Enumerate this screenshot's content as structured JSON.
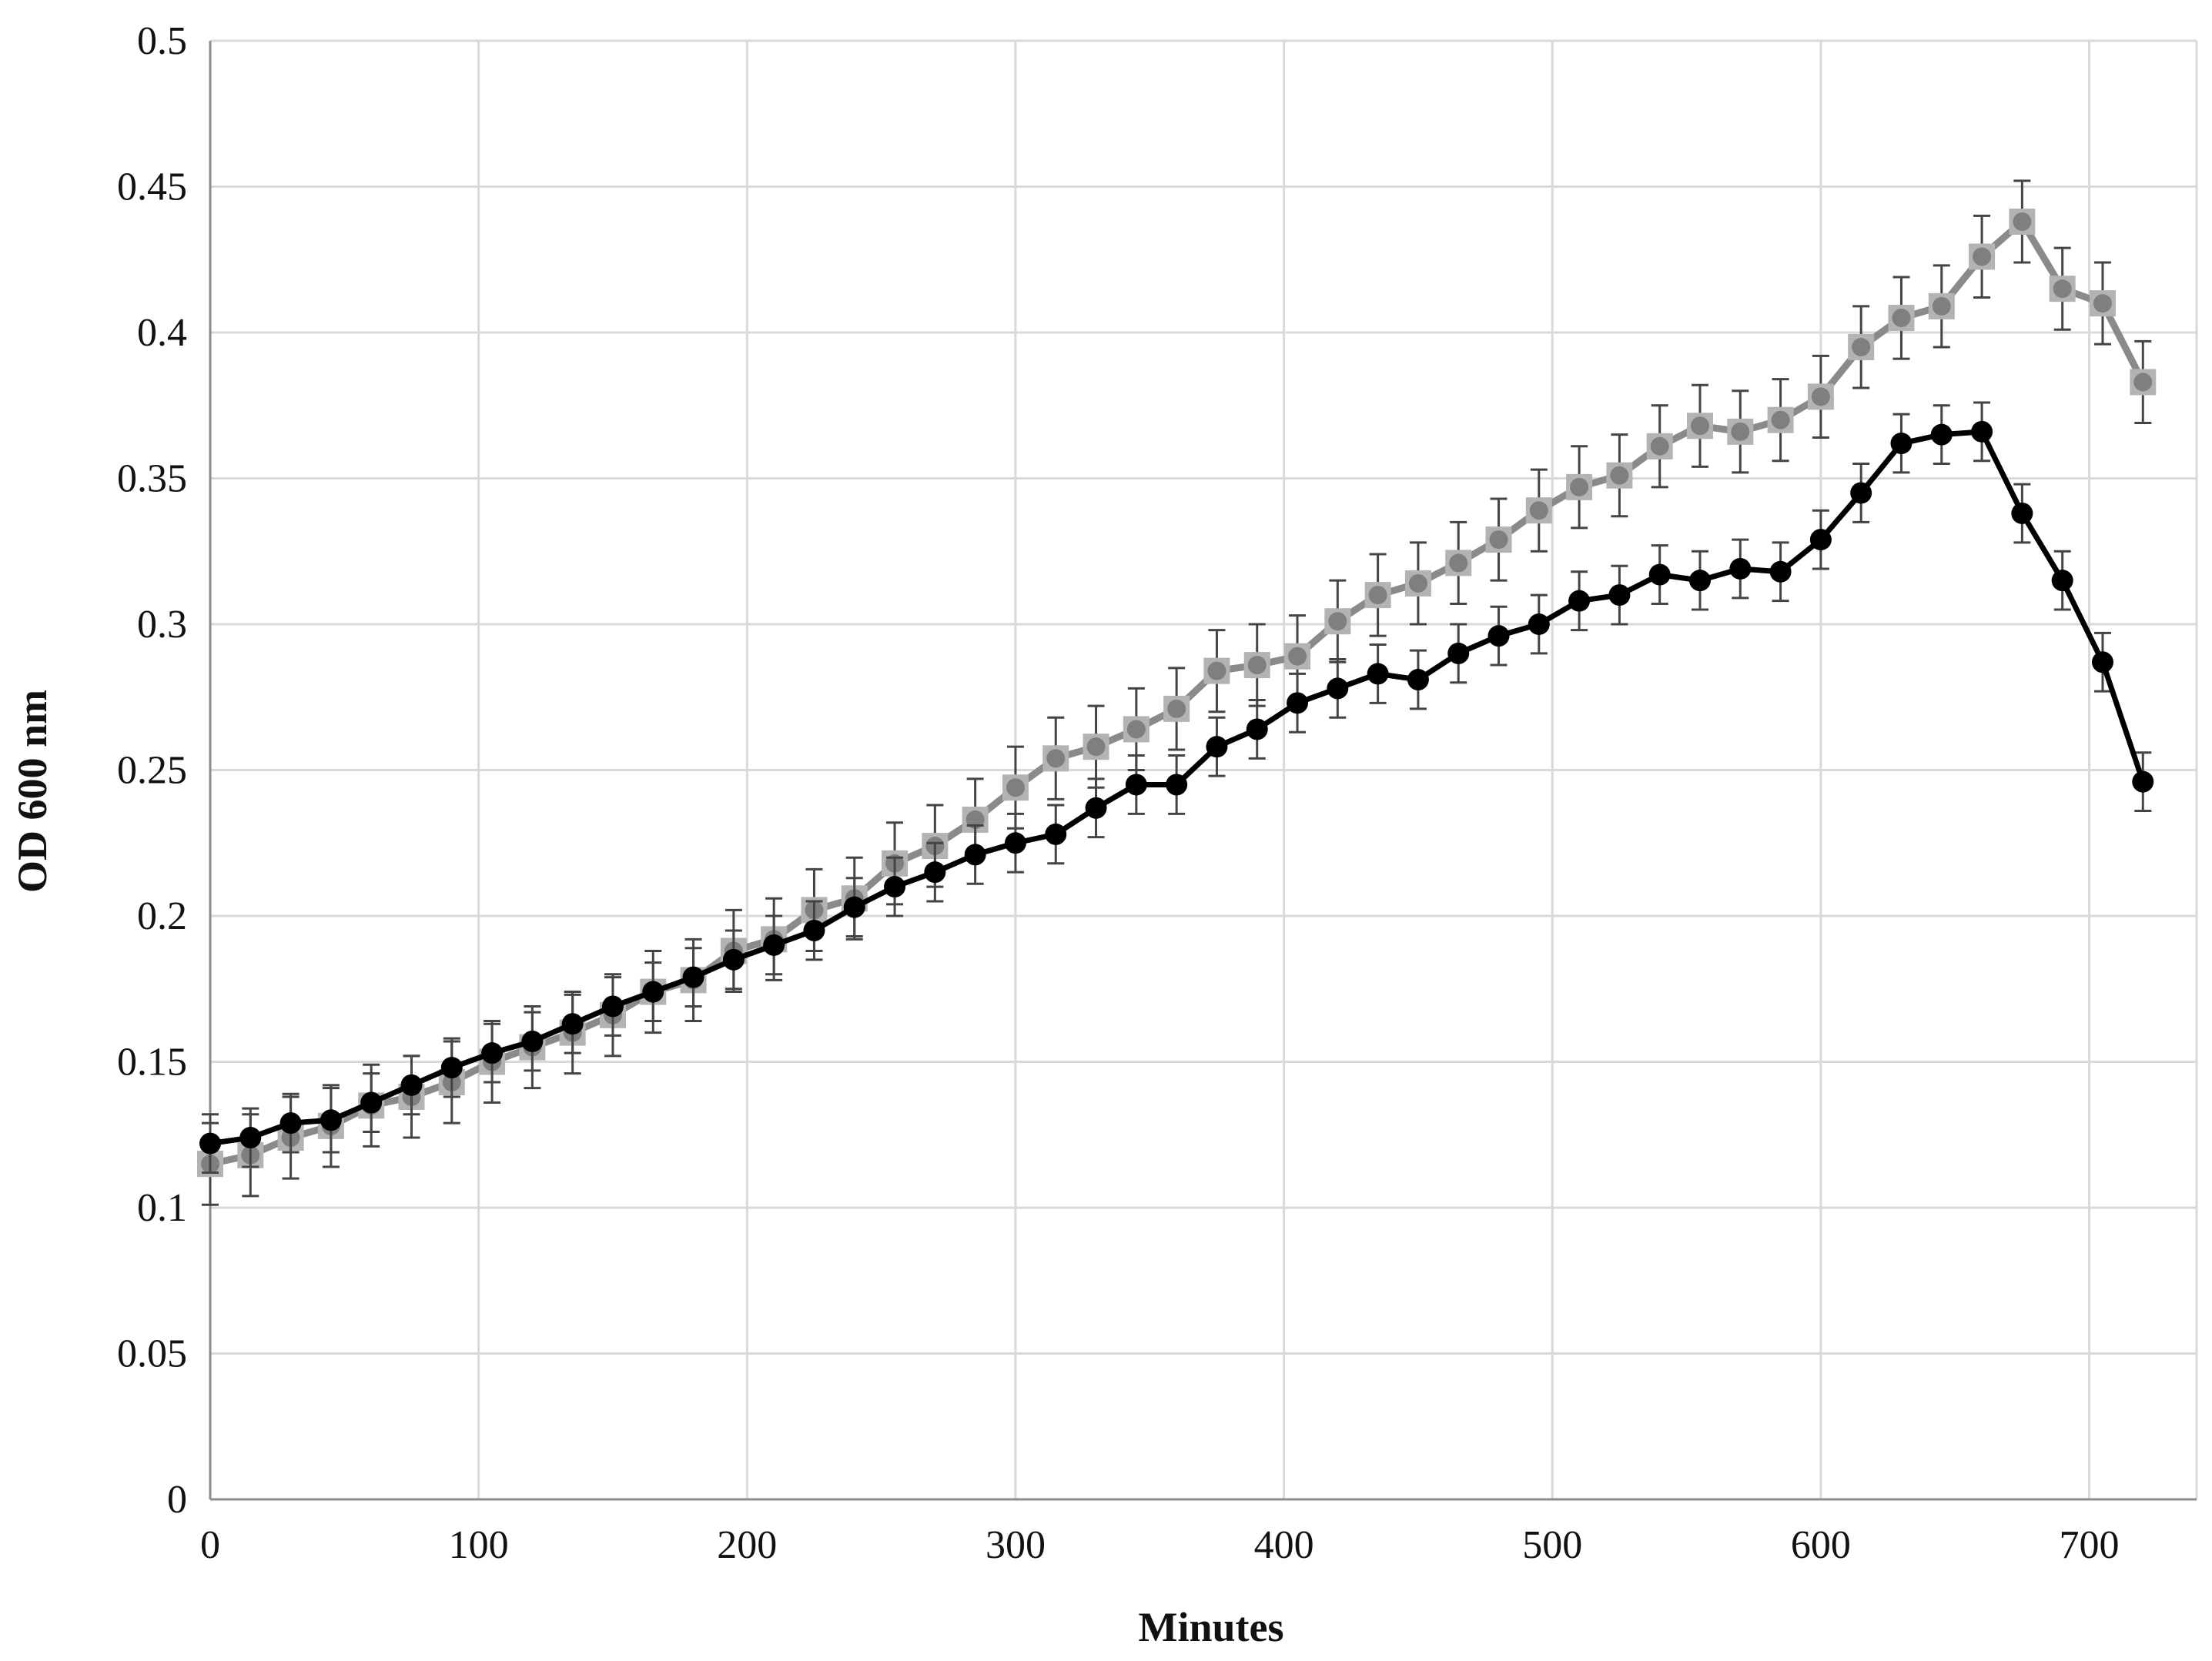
{
  "chart_data": {
    "type": "line",
    "title": "",
    "xlabel": "Minutes",
    "ylabel": "OD 600 nm",
    "xlim": [
      0,
      740
    ],
    "ylim": [
      0,
      0.5
    ],
    "x_ticks": [
      "0",
      "100",
      "200",
      "300",
      "400",
      "500",
      "600",
      "700"
    ],
    "y_ticks": [
      "0",
      "0.05",
      "0.1",
      "0.15",
      "0.2",
      "0.25",
      "0.3",
      "0.35",
      "0.4",
      "0.45",
      "0.5"
    ],
    "grid": true,
    "legend": "none",
    "x": [
      0,
      15,
      30,
      45,
      60,
      75,
      90,
      105,
      120,
      135,
      150,
      165,
      180,
      195,
      210,
      225,
      240,
      255,
      270,
      285,
      300,
      315,
      330,
      345,
      360,
      375,
      390,
      405,
      420,
      435,
      450,
      465,
      480,
      495,
      510,
      525,
      540,
      555,
      570,
      585,
      600,
      615,
      630,
      645,
      660,
      675,
      690,
      705,
      720
    ],
    "series": [
      {
        "color": "#888888",
        "marker": "square",
        "values": [
          0.115,
          0.118,
          0.124,
          0.128,
          0.135,
          0.138,
          0.143,
          0.15,
          0.155,
          0.16,
          0.166,
          0.174,
          0.178,
          0.188,
          0.192,
          0.202,
          0.206,
          0.218,
          0.224,
          0.233,
          0.244,
          0.254,
          0.258,
          0.264,
          0.271,
          0.284,
          0.286,
          0.289,
          0.301,
          0.31,
          0.314,
          0.321,
          0.329,
          0.339,
          0.347,
          0.351,
          0.361,
          0.368,
          0.366,
          0.37,
          0.378,
          0.395,
          0.405,
          0.409,
          0.426,
          0.438,
          0.415,
          0.41,
          0.383
        ],
        "errors": [
          0.014,
          0.014,
          0.014,
          0.014,
          0.014,
          0.014,
          0.014,
          0.014,
          0.014,
          0.014,
          0.014,
          0.014,
          0.014,
          0.014,
          0.014,
          0.014,
          0.014,
          0.014,
          0.014,
          0.014,
          0.014,
          0.014,
          0.014,
          0.014,
          0.014,
          0.014,
          0.014,
          0.014,
          0.014,
          0.014,
          0.014,
          0.014,
          0.014,
          0.014,
          0.014,
          0.014,
          0.014,
          0.014,
          0.014,
          0.014,
          0.014,
          0.014,
          0.014,
          0.014,
          0.014,
          0.014,
          0.014,
          0.014,
          0.014
        ]
      },
      {
        "color": "#000000",
        "marker": "circle",
        "values": [
          0.122,
          0.124,
          0.129,
          0.13,
          0.136,
          0.142,
          0.148,
          0.153,
          0.157,
          0.163,
          0.169,
          0.174,
          0.179,
          0.185,
          0.19,
          0.195,
          0.203,
          0.21,
          0.215,
          0.221,
          0.225,
          0.228,
          0.237,
          0.245,
          0.245,
          0.258,
          0.264,
          0.273,
          0.278,
          0.283,
          0.281,
          0.29,
          0.296,
          0.3,
          0.308,
          0.31,
          0.317,
          0.315,
          0.319,
          0.318,
          0.329,
          0.345,
          0.362,
          0.365,
          0.366,
          0.338,
          0.315,
          0.287,
          0.246
        ],
        "errors": [
          0.01,
          0.01,
          0.01,
          0.011,
          0.01,
          0.01,
          0.01,
          0.01,
          0.01,
          0.01,
          0.01,
          0.01,
          0.01,
          0.01,
          0.01,
          0.01,
          0.01,
          0.01,
          0.01,
          0.01,
          0.01,
          0.01,
          0.01,
          0.01,
          0.01,
          0.01,
          0.01,
          0.01,
          0.01,
          0.01,
          0.01,
          0.01,
          0.01,
          0.01,
          0.01,
          0.01,
          0.01,
          0.01,
          0.01,
          0.01,
          0.01,
          0.01,
          0.01,
          0.01,
          0.01,
          0.01,
          0.01,
          0.01,
          0.01
        ]
      }
    ]
  }
}
